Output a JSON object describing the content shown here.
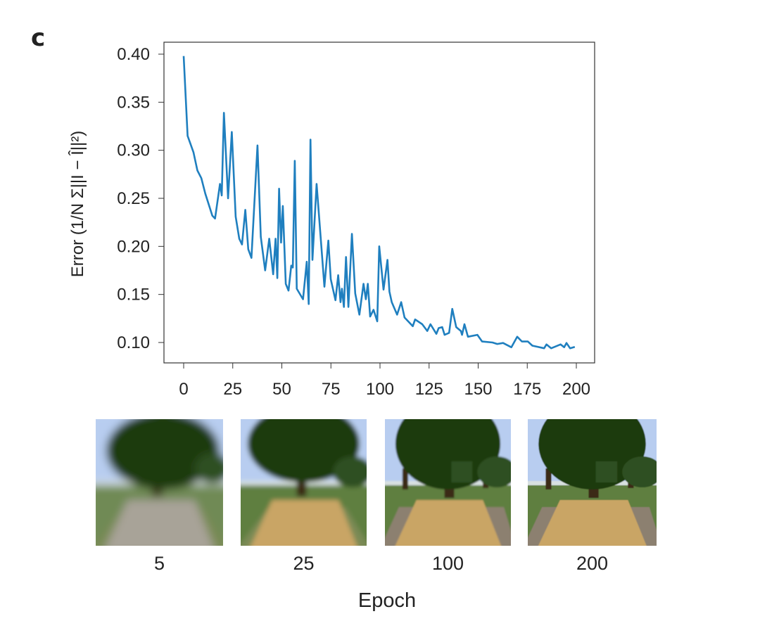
{
  "panel_label": "c",
  "chart_data": {
    "type": "line",
    "title": "",
    "xlabel": "",
    "ylabel": "Error (1/N Σ||I − Î||²)",
    "ylabel_parts": {
      "prefix": "Error (",
      "num": "1",
      "den": "N",
      "body": "Σ||I − Î||",
      "sup": "2",
      "suffix": ")"
    },
    "xlim": [
      0,
      200
    ],
    "ylim": [
      0.085,
      0.41
    ],
    "xticks": [
      0,
      25,
      50,
      75,
      100,
      125,
      150,
      175,
      200
    ],
    "xtick_labels": [
      "0",
      "25",
      "50",
      "75",
      "100",
      "125",
      "150",
      "175",
      "200"
    ],
    "yticks": [
      0.1,
      0.15,
      0.2,
      0.25,
      0.3,
      0.35,
      0.4
    ],
    "ytick_labels": [
      "0.10",
      "0.15",
      "0.20",
      "0.25",
      "0.30",
      "0.35",
      "0.40"
    ],
    "grid": false,
    "series": [
      {
        "name": "Error",
        "color": "#1f7fbf",
        "x": [
          0,
          2,
          5,
          7,
          9,
          11,
          14.6,
          16,
          18.5,
          19.4,
          20.5,
          22.6,
          24.5,
          26.5,
          28.3,
          29.7,
          31.4,
          32.9,
          34.5,
          37.6,
          39.3,
          41.5,
          43.6,
          45.6,
          46.8,
          47.7,
          48.6,
          49.6,
          50.5,
          52,
          53.4,
          54.8,
          55.6,
          56.6,
          57.6,
          60.8,
          62.7,
          63.7,
          64.6,
          65.6,
          67.7,
          71.7,
          73.7,
          74.9,
          77.3,
          78.7,
          79.9,
          80.6,
          81.6,
          82.7,
          83.9,
          85.7,
          87.4,
          89.5,
          91.6,
          92.8,
          93.8,
          95,
          96.7,
          98.6,
          99.6,
          101.8,
          103.8,
          104.8,
          106,
          108.7,
          110.8,
          112.5,
          116.7,
          117.9,
          121.5,
          124.1,
          125.7,
          128.7,
          129.9,
          131.7,
          132.9,
          135.2,
          136.8,
          138.8,
          141.2,
          141.8,
          143,
          144.8,
          149.6,
          152,
          157.3,
          159.7,
          162.7,
          166.9,
          169.9,
          172.3,
          175.3,
          177.6,
          183.6,
          184.8,
          187.2,
          192,
          193.8,
          195,
          196.8,
          199.2
        ],
        "y": [
          0.398,
          0.315,
          0.298,
          0.279,
          0.271,
          0.255,
          0.232,
          0.229,
          0.265,
          0.253,
          0.339,
          0.25,
          0.319,
          0.231,
          0.208,
          0.202,
          0.238,
          0.197,
          0.188,
          0.305,
          0.21,
          0.175,
          0.208,
          0.171,
          0.208,
          0.167,
          0.26,
          0.204,
          0.242,
          0.161,
          0.154,
          0.18,
          0.178,
          0.289,
          0.156,
          0.145,
          0.184,
          0.14,
          0.311,
          0.186,
          0.265,
          0.158,
          0.206,
          0.166,
          0.144,
          0.17,
          0.142,
          0.156,
          0.137,
          0.189,
          0.137,
          0.213,
          0.151,
          0.129,
          0.161,
          0.145,
          0.161,
          0.127,
          0.134,
          0.122,
          0.2,
          0.155,
          0.186,
          0.153,
          0.142,
          0.129,
          0.142,
          0.126,
          0.117,
          0.124,
          0.119,
          0.112,
          0.119,
          0.109,
          0.115,
          0.116,
          0.108,
          0.11,
          0.135,
          0.116,
          0.112,
          0.108,
          0.119,
          0.106,
          0.108,
          0.101,
          0.1,
          0.0985,
          0.0995,
          0.095,
          0.106,
          0.101,
          0.101,
          0.0967,
          0.094,
          0.098,
          0.094,
          0.098,
          0.095,
          0.0995,
          0.094,
          0.0955
        ]
      }
    ]
  },
  "thumbnails": [
    {
      "label": "5",
      "blur": 6
    },
    {
      "label": "25",
      "blur": 3.5
    },
    {
      "label": "100",
      "blur": 1.2
    },
    {
      "label": "200",
      "blur": 0.6
    }
  ],
  "thumbnail_axis_label": "Epoch",
  "colors": {
    "sky": "#b8cdf0",
    "foliage": "#1f3a10",
    "grass": "#5f7f3f",
    "path": "#c9a565",
    "trunk": "#3b2a18"
  }
}
